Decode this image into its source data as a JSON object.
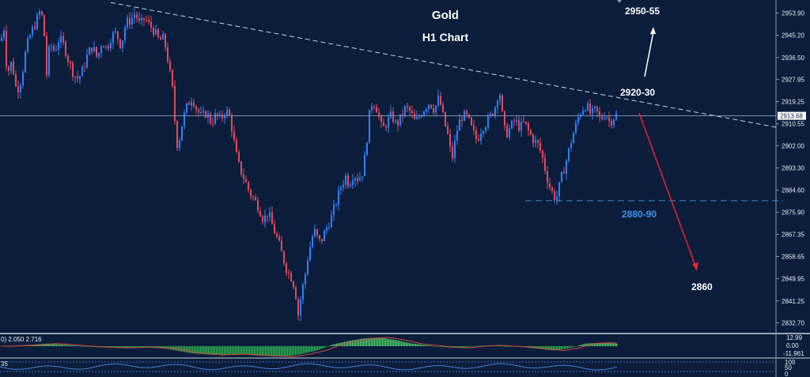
{
  "chart_data": {
    "type": "candlestick",
    "title": "Gold",
    "subtitle": "H1 Chart",
    "ylim": [
      2828.5,
      2959.0
    ],
    "y_ticks": [
      "2953.90",
      "2945.20",
      "2936.50",
      "2927.95",
      "2919.25",
      "2910.55",
      "2902.00",
      "2893.30",
      "2884.60",
      "2875.90",
      "2867.35",
      "2858.65",
      "2849.95",
      "2841.25",
      "2832.70"
    ],
    "y_tick_values": [
      2953.9,
      2945.2,
      2936.5,
      2927.95,
      2919.25,
      2910.55,
      2902.0,
      2893.3,
      2884.6,
      2875.9,
      2867.35,
      2858.65,
      2849.95,
      2841.25,
      2832.7
    ],
    "current_price": "2913.68",
    "current_price_value": 2913.68,
    "path_points": [
      [
        0,
        2943
      ],
      [
        4,
        2948
      ],
      [
        8,
        2930
      ],
      [
        14,
        2935
      ],
      [
        20,
        2923
      ],
      [
        26,
        2928
      ],
      [
        32,
        2940
      ],
      [
        38,
        2946
      ],
      [
        44,
        2950
      ],
      [
        50,
        2955
      ],
      [
        54,
        2950
      ],
      [
        58,
        2930
      ],
      [
        62,
        2942
      ],
      [
        68,
        2939
      ],
      [
        74,
        2944
      ],
      [
        80,
        2941
      ],
      [
        86,
        2935
      ],
      [
        92,
        2930
      ],
      [
        98,
        2928
      ],
      [
        104,
        2932
      ],
      [
        110,
        2938
      ],
      [
        116,
        2941
      ],
      [
        122,
        2936
      ],
      [
        128,
        2943
      ],
      [
        134,
        2940
      ],
      [
        140,
        2945
      ],
      [
        146,
        2946
      ],
      [
        152,
        2941
      ],
      [
        158,
        2950
      ],
      [
        164,
        2951
      ],
      [
        170,
        2954
      ],
      [
        176,
        2949
      ],
      [
        182,
        2952
      ],
      [
        188,
        2949
      ],
      [
        194,
        2947
      ],
      [
        200,
        2943
      ],
      [
        206,
        2944
      ],
      [
        210,
        2938
      ],
      [
        214,
        2930
      ],
      [
        218,
        2922
      ],
      [
        222,
        2902
      ],
      [
        226,
        2905
      ],
      [
        230,
        2912
      ],
      [
        236,
        2918
      ],
      [
        242,
        2921
      ],
      [
        248,
        2916
      ],
      [
        254,
        2913
      ],
      [
        260,
        2915
      ],
      [
        266,
        2911
      ],
      [
        272,
        2914
      ],
      [
        278,
        2912
      ],
      [
        284,
        2916
      ],
      [
        290,
        2913
      ],
      [
        294,
        2905
      ],
      [
        298,
        2898
      ],
      [
        302,
        2893
      ],
      [
        308,
        2889
      ],
      [
        314,
        2884
      ],
      [
        320,
        2881
      ],
      [
        326,
        2878
      ],
      [
        332,
        2873
      ],
      [
        338,
        2876
      ],
      [
        344,
        2870
      ],
      [
        350,
        2865
      ],
      [
        356,
        2859
      ],
      [
        362,
        2853
      ],
      [
        368,
        2850
      ],
      [
        372,
        2846
      ],
      [
        376,
        2836
      ],
      [
        380,
        2844
      ],
      [
        384,
        2850
      ],
      [
        388,
        2858
      ],
      [
        392,
        2864
      ],
      [
        396,
        2869
      ],
      [
        400,
        2866
      ],
      [
        404,
        2864
      ],
      [
        408,
        2867
      ],
      [
        412,
        2870
      ],
      [
        418,
        2874
      ],
      [
        424,
        2880
      ],
      [
        430,
        2886
      ],
      [
        436,
        2890
      ],
      [
        440,
        2887
      ],
      [
        446,
        2891
      ],
      [
        452,
        2889
      ],
      [
        458,
        2892
      ],
      [
        462,
        2902
      ],
      [
        466,
        2914
      ],
      [
        470,
        2920
      ],
      [
        476,
        2916
      ],
      [
        482,
        2908
      ],
      [
        488,
        2911
      ],
      [
        494,
        2914
      ],
      [
        500,
        2910
      ],
      [
        506,
        2913
      ],
      [
        512,
        2917
      ],
      [
        518,
        2915
      ],
      [
        524,
        2911
      ],
      [
        530,
        2914
      ],
      [
        536,
        2917
      ],
      [
        542,
        2919
      ],
      [
        548,
        2916
      ],
      [
        554,
        2921
      ],
      [
        560,
        2912
      ],
      [
        566,
        2905
      ],
      [
        570,
        2896
      ],
      [
        574,
        2903
      ],
      [
        578,
        2910
      ],
      [
        584,
        2914
      ],
      [
        590,
        2913
      ],
      [
        596,
        2908
      ],
      [
        602,
        2904
      ],
      [
        608,
        2909
      ],
      [
        614,
        2911
      ],
      [
        620,
        2914
      ],
      [
        626,
        2918
      ],
      [
        630,
        2925
      ],
      [
        634,
        2914
      ],
      [
        638,
        2906
      ],
      [
        644,
        2909
      ],
      [
        650,
        2912
      ],
      [
        656,
        2909
      ],
      [
        662,
        2911
      ],
      [
        668,
        2907
      ],
      [
        674,
        2904
      ],
      [
        680,
        2902
      ],
      [
        686,
        2896
      ],
      [
        690,
        2890
      ],
      [
        694,
        2886
      ],
      [
        698,
        2883
      ],
      [
        702,
        2881
      ],
      [
        706,
        2886
      ],
      [
        710,
        2891
      ],
      [
        714,
        2895
      ],
      [
        718,
        2900
      ],
      [
        722,
        2905
      ],
      [
        726,
        2909
      ],
      [
        730,
        2913
      ],
      [
        734,
        2916
      ],
      [
        740,
        2918
      ],
      [
        746,
        2914
      ],
      [
        752,
        2916
      ],
      [
        758,
        2912
      ],
      [
        764,
        2915
      ],
      [
        770,
        2911
      ],
      [
        774,
        2913
      ],
      [
        778,
        2914
      ]
    ],
    "resistance_line": [
      [
        140,
        2958.0
      ],
      [
        985,
        2909.0
      ]
    ],
    "support_line_y": 2880.5,
    "support_line_x": [
      664,
      990
    ],
    "annotations": {
      "target_up": "2950-55",
      "resistance": "2920-30",
      "support": "2880-90",
      "target_down": "2860"
    },
    "indicator1": {
      "header": "0) 2.050 2.716",
      "ticks": [
        "12.99",
        "0.00",
        "-11.961"
      ],
      "segments": [
        [
          0,
          0
        ],
        [
          30,
          1
        ],
        [
          60,
          3
        ],
        [
          90,
          1
        ],
        [
          120,
          -1
        ],
        [
          150,
          -2
        ],
        [
          180,
          -1
        ],
        [
          210,
          -3
        ],
        [
          240,
          -8
        ],
        [
          270,
          -10
        ],
        [
          300,
          -9
        ],
        [
          330,
          -11
        ],
        [
          360,
          -12
        ],
        [
          380,
          -9
        ],
        [
          400,
          -5
        ],
        [
          420,
          2
        ],
        [
          440,
          6
        ],
        [
          460,
          9
        ],
        [
          480,
          10
        ],
        [
          500,
          7
        ],
        [
          520,
          3
        ],
        [
          540,
          1
        ],
        [
          560,
          -1
        ],
        [
          580,
          -2
        ],
        [
          600,
          0
        ],
        [
          620,
          1
        ],
        [
          640,
          0
        ],
        [
          660,
          -1
        ],
        [
          680,
          -3
        ],
        [
          700,
          -5
        ],
        [
          720,
          -2
        ],
        [
          740,
          3
        ],
        [
          760,
          4
        ],
        [
          780,
          3
        ]
      ]
    },
    "indicator2": {
      "header": "35",
      "ticks": [
        "100",
        "50",
        "0"
      ]
    }
  },
  "colors": {
    "background": "#0b1d3b",
    "bull": "#2f80ff",
    "bear": "#e34a5c",
    "resistance_line": "#c8d2e0",
    "support_line": "#3f88c5",
    "support_text": "#3f96e8",
    "arrow_up": "#ffffff",
    "arrow_down": "#e8252b",
    "osc_positive": "#4fd16a",
    "osc_negative": "#2eb34e",
    "signal": "#d94a3c",
    "axis_text": "#e6ebf2",
    "grid": "#24385c"
  }
}
